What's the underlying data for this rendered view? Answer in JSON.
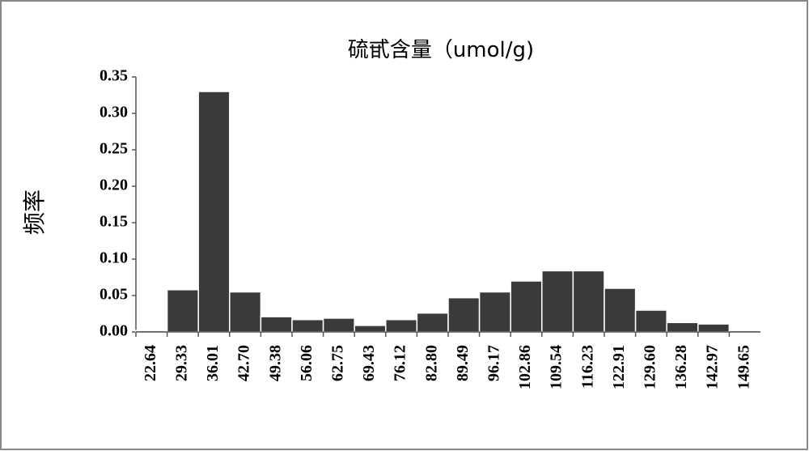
{
  "chart_data": {
    "type": "bar",
    "title": "硫甙含量（umol/g)",
    "y_label": "频率",
    "categories": [
      "22.64",
      "29.33",
      "36.01",
      "42.70",
      "49.38",
      "56.06",
      "62.75",
      "69.43",
      "76.12",
      "82.80",
      "89.49",
      "96.17",
      "102.86",
      "109.54",
      "116.23",
      "122.91",
      "129.60",
      "136.28",
      "142.97",
      "149.65"
    ],
    "values": [
      0.002,
      0.058,
      0.33,
      0.055,
      0.021,
      0.017,
      0.019,
      0.009,
      0.017,
      0.026,
      0.047,
      0.055,
      0.07,
      0.084,
      0.084,
      0.06,
      0.03,
      0.013,
      0.011,
      0.002
    ],
    "color": "#3a3a3a",
    "ylim": [
      0,
      0.35
    ],
    "yticks": [
      {
        "value": 0,
        "label": "0.00"
      },
      {
        "value": 0.05,
        "label": "0.05"
      },
      {
        "value": 0.1,
        "label": "0.10"
      },
      {
        "value": 0.15,
        "label": "0.15"
      },
      {
        "value": 0.2,
        "label": "0.20"
      },
      {
        "value": 0.25,
        "label": "0.25"
      },
      {
        "value": 0.3,
        "label": "0.30"
      },
      {
        "value": 0.35,
        "label": "0.35"
      }
    ]
  }
}
